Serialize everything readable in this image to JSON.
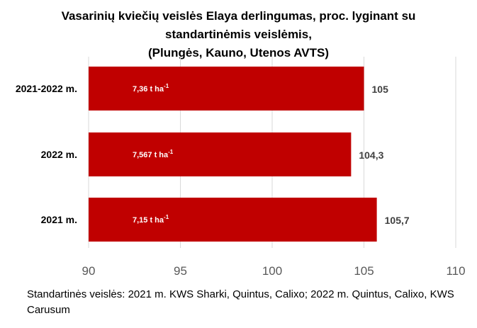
{
  "chart_data": {
    "type": "bar",
    "orientation": "horizontal",
    "title_lines": [
      "Vasarinių kviečių veislės Elaya derlingumas, proc. lyginant su",
      "standartinėmis veislėmis,",
      "(Plungės, Kauno, Utenos AVTS)"
    ],
    "categories": [
      "2021-2022 m.",
      "2022 m.",
      "2021 m."
    ],
    "values": [
      105,
      104.3,
      105.7
    ],
    "value_labels": [
      "105",
      "104,3",
      "105,7"
    ],
    "inner_labels": [
      {
        "text": "7,36 t ha",
        "sup": "-1"
      },
      {
        "text": "7,567 t ha",
        "sup": "-1"
      },
      {
        "text": "7,15 t ha",
        "sup": "-1"
      }
    ],
    "xlim": [
      90,
      110
    ],
    "xticks": [
      90,
      95,
      100,
      105,
      110
    ],
    "xtick_labels": [
      "90",
      "95",
      "100",
      "105",
      "110"
    ],
    "grid": true,
    "bar_color": "#c00000",
    "footnote": "Standartinės veislės: 2021 m. KWS Sharki, Quintus, Calixo; 2022 m. Quintus, Calixo, KWS Carusum"
  }
}
